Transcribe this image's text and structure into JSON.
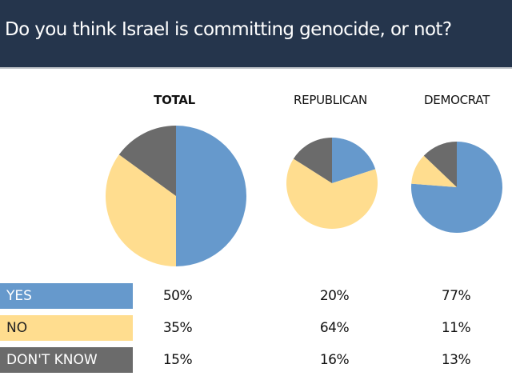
{
  "title": "Do you think Israel is committing genocide, or not?",
  "colors": {
    "header": "#25354c",
    "yes": "#6699cc",
    "no": "#ffdd8f",
    "dont_know": "#6b6b6b"
  },
  "chart_data": {
    "type": "pie",
    "title": "Do you think Israel is committing genocide, or not?",
    "categories": [
      "YES",
      "NO",
      "DON'T KNOW"
    ],
    "groups": [
      {
        "name": "TOTAL",
        "values": [
          50,
          35,
          15
        ],
        "labels": [
          "50%",
          "35%",
          "15%"
        ]
      },
      {
        "name": "REPUBLICAN",
        "values": [
          20,
          64,
          16
        ],
        "labels": [
          "20%",
          "64%",
          "16%"
        ]
      },
      {
        "name": "DEMOCRAT",
        "values": [
          77,
          11,
          13
        ],
        "labels": [
          "77%",
          "11%",
          "13%"
        ]
      }
    ],
    "legend": "left-bottom"
  }
}
